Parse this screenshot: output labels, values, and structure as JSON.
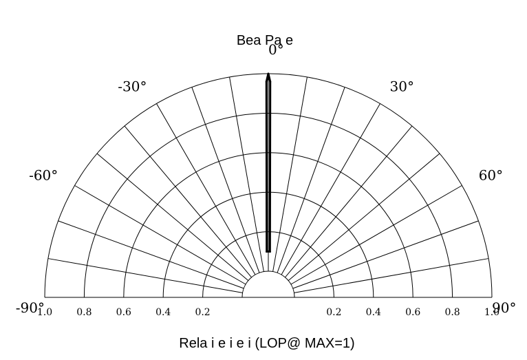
{
  "chart_data": {
    "type": "polar",
    "title": "Bea  Pa e",
    "xlabel": "Rela i e i  e  i    (LOP@ MAX=1)",
    "angle_range": [
      -90,
      90
    ],
    "angle_ticks": [
      {
        "deg": -90,
        "label": "-90°"
      },
      {
        "deg": -60,
        "label": "-60°"
      },
      {
        "deg": -30,
        "label": "-30°"
      },
      {
        "deg": 0,
        "label": "0°"
      },
      {
        "deg": 30,
        "label": "30°"
      },
      {
        "deg": 60,
        "label": "60°"
      },
      {
        "deg": 90,
        "label": "90°"
      }
    ],
    "radial_range": [
      0,
      1.0
    ],
    "radial_tick_labels": {
      "left": [
        "1.0",
        "0.8",
        "0.6",
        "0.4",
        "0.2"
      ],
      "right": [
        "0.2",
        "0.4",
        "0.6",
        "0.8",
        "1.0"
      ]
    },
    "radial_tick_values": [
      1.0,
      0.8,
      0.6,
      0.4,
      0.2
    ],
    "grid": true,
    "series": [
      {
        "color": "#000000",
        "points": [
          {
            "angle": 0,
            "r": 1.0
          },
          {
            "angle": -0.5,
            "r": 0.96
          },
          {
            "angle": 0.5,
            "r": 0.96
          },
          {
            "angle": -2,
            "r": 0.1
          },
          {
            "angle": 2,
            "r": 0.1
          }
        ]
      }
    ]
  }
}
